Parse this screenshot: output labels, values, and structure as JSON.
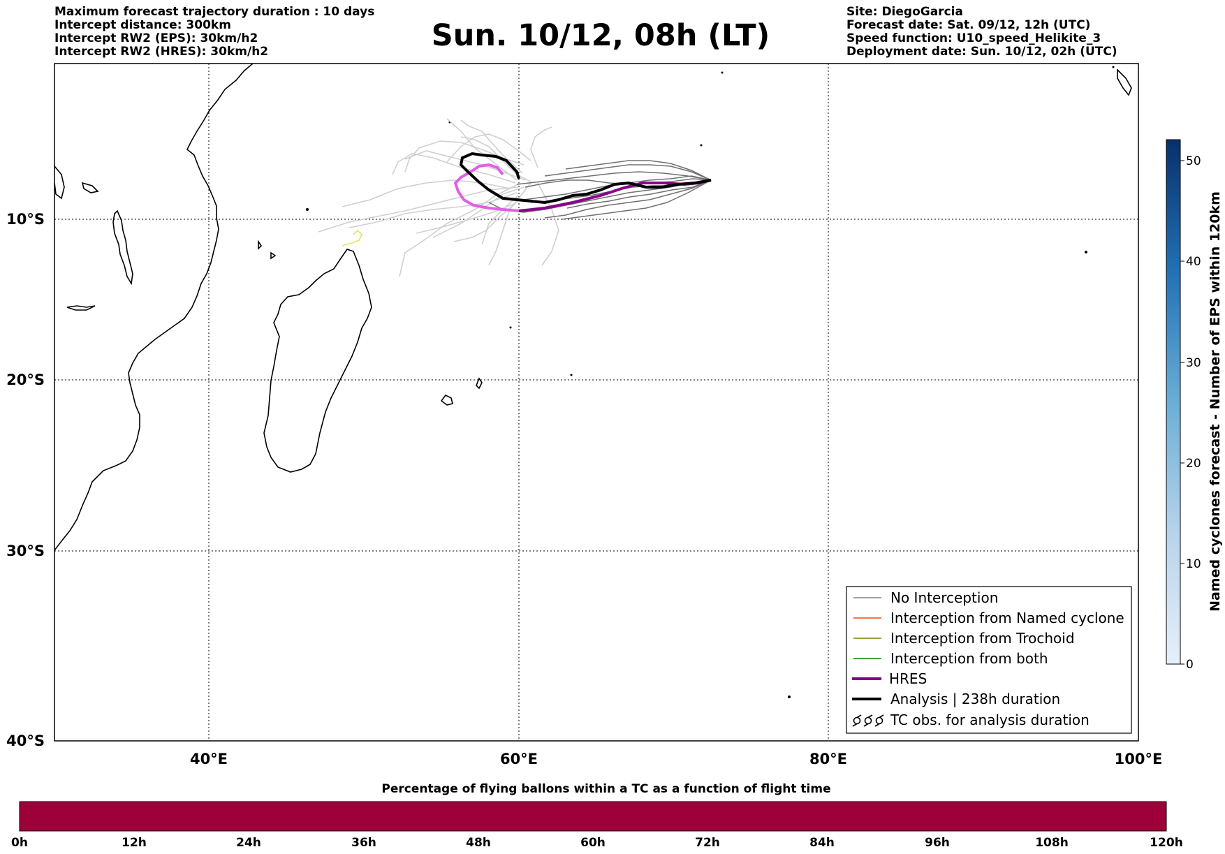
{
  "header_left": [
    "Maximum forecast trajectory duration : 10 days",
    "Intercept distance: 300km",
    "Intercept RW2 (EPS):  30km/h2",
    "Intercept RW2 (HRES): 30km/h2"
  ],
  "title": "Sun. 10/12, 08h (LT)",
  "header_right": [
    "Site: DiegoGarcia",
    "Forecast date: Sat. 09/12, 12h (UTC)",
    "Speed function: U10_speed_Helikite_3",
    "Deployment date: Sun. 10/12, 02h (UTC)"
  ],
  "map": {
    "lon_labels": [
      "40°E",
      "60°E",
      "80°E",
      "100°E"
    ],
    "lat_labels": [
      "10°S",
      "20°S",
      "30°S",
      "40°S"
    ]
  },
  "legend": {
    "items": [
      {
        "label": "No Interception",
        "color": "#808080"
      },
      {
        "label": "Interception from Named cyclone",
        "color": "#ff4500"
      },
      {
        "label": "Interception from Trochoid",
        "color": "#808000"
      },
      {
        "label": "Interception from both",
        "color": "#008000"
      },
      {
        "label": "HRES",
        "color": "#800080"
      },
      {
        "label": "Analysis | 238h duration",
        "color": "#000000"
      },
      {
        "label": "TC obs. for analysis duration",
        "color": "#000000"
      }
    ]
  },
  "colorbar_right": {
    "label": "Named cyclones forecast - Number of EPS within 120km",
    "ticks": [
      "0",
      "10",
      "20",
      "30",
      "40",
      "50"
    ],
    "color_low": "#e6eff9",
    "color_high": "#08306b"
  },
  "colorbar_bottom": {
    "title": "Percentage of flying ballons within a TC as a function of flight time",
    "ticks": [
      "0h",
      "12h",
      "24h",
      "36h",
      "48h",
      "60h",
      "72h",
      "84h",
      "96h",
      "108h",
      "120h"
    ],
    "fill_color": "#9e003a"
  }
}
